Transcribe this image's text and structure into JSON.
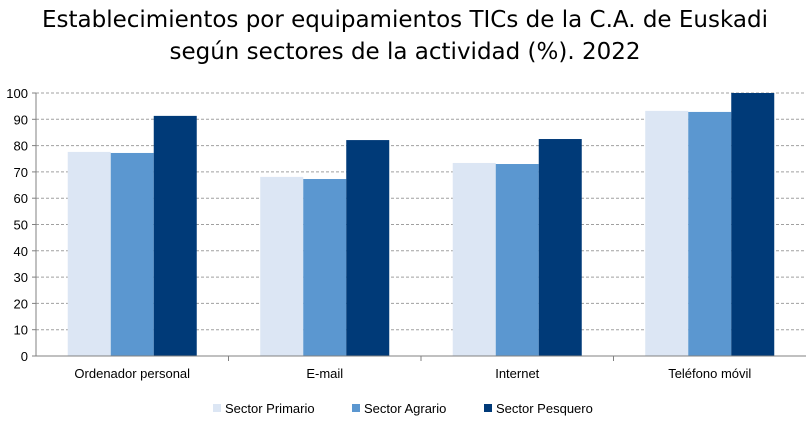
{
  "chart_data": {
    "type": "bar",
    "title_lines": [
      "Establecimientos por equipamientos TICs de la C.A. de Euskadi",
      "según sectores de la actividad (%). 2022"
    ],
    "categories": [
      "Ordenador personal",
      "E-mail",
      "Internet",
      "Teléfono móvil"
    ],
    "series": [
      {
        "name": "Sector Primario",
        "color": "#DCE6F4",
        "values": [
          77.6,
          68.1,
          73.4,
          93.2
        ]
      },
      {
        "name": "Sector Agrario",
        "color": "#5B97D0",
        "values": [
          77.2,
          67.3,
          73.0,
          92.8
        ]
      },
      {
        "name": "Sector Pesquero",
        "color": "#003A78",
        "values": [
          91.3,
          82.1,
          82.5,
          100.0
        ]
      }
    ],
    "ylim": [
      0,
      100
    ],
    "yticks": [
      0,
      10,
      20,
      30,
      40,
      50,
      60,
      70,
      80,
      90,
      100
    ],
    "grid": true,
    "legend": "bottom",
    "xlabel": "",
    "ylabel": ""
  }
}
